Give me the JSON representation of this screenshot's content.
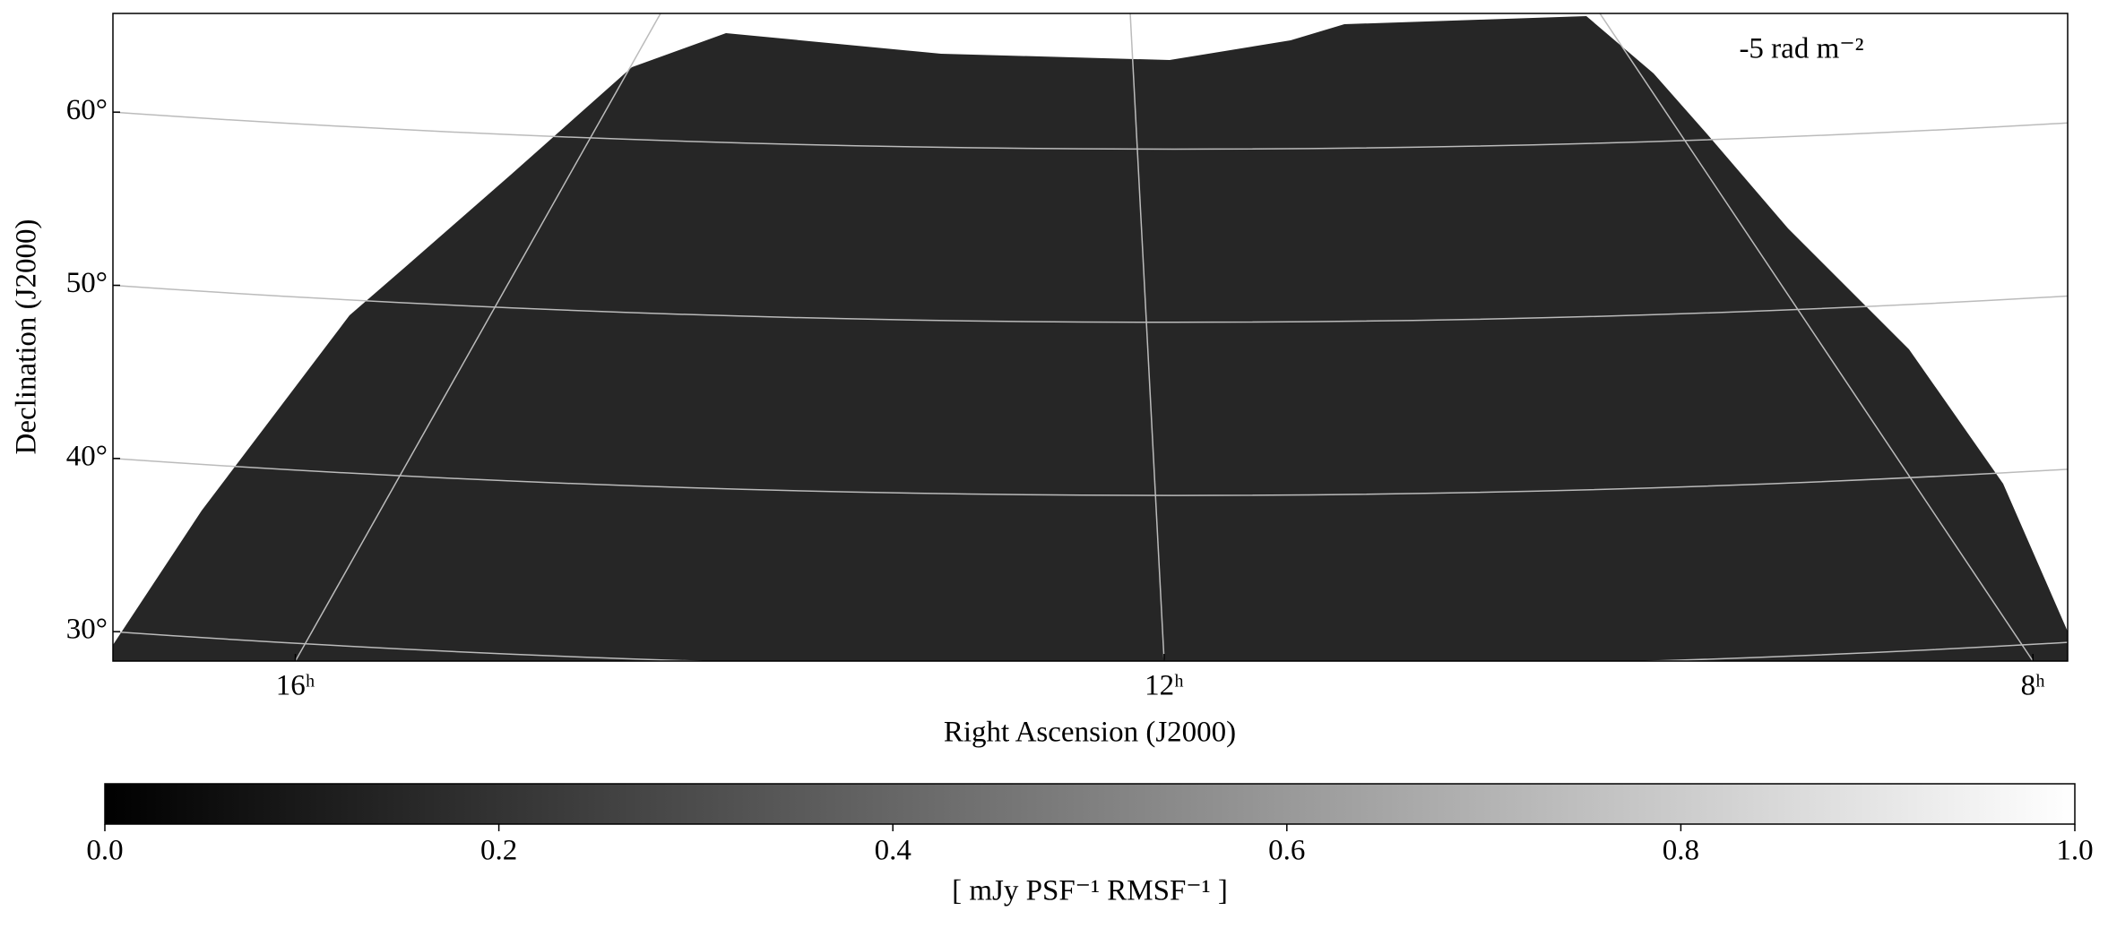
{
  "chart_data": {
    "type": "image",
    "annotation": "-5 rad m⁻²",
    "xlabel": "Right Ascension (J2000)",
    "ylabel": "Declination (J2000)",
    "xlim": [
      16.84,
      7.84
    ],
    "ylim": [
      28.3,
      65.7
    ],
    "xticks": [
      {
        "value": 16,
        "label": "16ʰ"
      },
      {
        "value": 12,
        "label": "12ʰ"
      },
      {
        "value": 8,
        "label": "8ʰ"
      }
    ],
    "yticks": [
      {
        "value": 30,
        "label": "30°"
      },
      {
        "value": 40,
        "label": "40°"
      },
      {
        "value": 50,
        "label": "50°"
      },
      {
        "value": 60,
        "label": "60°"
      }
    ],
    "grid": true,
    "colorbar": {
      "label": "[ mJy PSF⁻¹ RMSF⁻¹ ]",
      "clim": [
        0,
        1
      ],
      "ticks": [
        {
          "value": 0,
          "label": "0.0"
        },
        0.2,
        0.4,
        0.6,
        0.8,
        {
          "value": 1,
          "label": "1.0"
        }
      ],
      "colors": [
        "#000000",
        "#ffffff"
      ]
    }
  }
}
